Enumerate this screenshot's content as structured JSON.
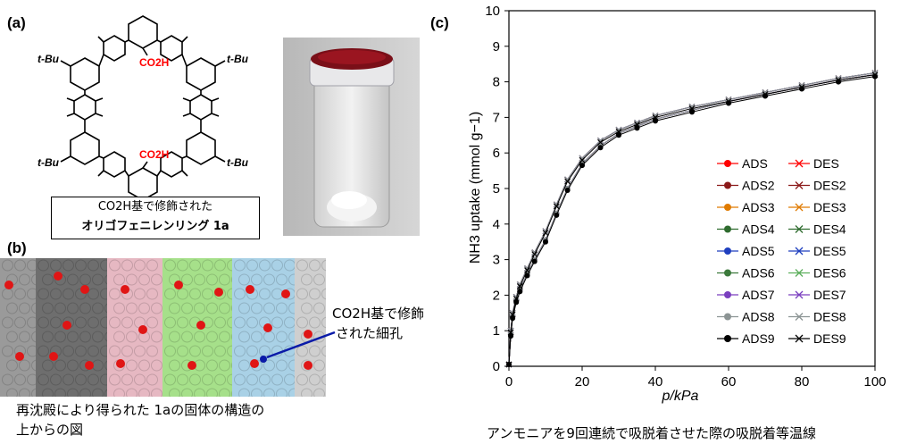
{
  "panel_a": {
    "label": "(a)",
    "substituent_tbu": "t-Bu",
    "co2h": "CO2H",
    "box_line1": "CO2H基で修飾された",
    "box_line2": "オリゴフェニレンリング 1a"
  },
  "panel_b": {
    "label": "(b)",
    "annotation_line1": "CO2H基で修飾",
    "annotation_line2": "された細孔",
    "caption_line1": "再沈殿により得られた 1aの固体の構造の",
    "caption_line2": "上からの図"
  },
  "panel_c": {
    "label": "(c)",
    "caption": "アンモニアを9回連続で吸脱着させた際の吸脱着等温線"
  },
  "chart_data": {
    "type": "line",
    "xlabel": "p/kPa",
    "ylabel": "NH3 uptake (mmol g−1)",
    "xlim": [
      0,
      100
    ],
    "ylim": [
      0,
      10
    ],
    "xticks": [
      0,
      20,
      40,
      60,
      80,
      100
    ],
    "yticks": [
      0,
      1,
      2,
      3,
      4,
      5,
      6,
      7,
      8,
      9,
      10
    ],
    "grid": false,
    "legend_position": "right",
    "x": [
      0,
      0.5,
      1,
      2,
      3,
      5,
      7,
      10,
      13,
      16,
      20,
      25,
      30,
      35,
      40,
      50,
      60,
      70,
      80,
      90,
      100
    ],
    "series": [
      {
        "name": "ADS",
        "color": "#ff0000",
        "marker": "circle",
        "values": [
          0.05,
          0.9,
          1.4,
          1.85,
          2.15,
          2.6,
          3.0,
          3.55,
          4.3,
          5.0,
          5.7,
          6.2,
          6.55,
          6.75,
          6.95,
          7.2,
          7.45,
          7.65,
          7.85,
          8.05,
          8.2
        ]
      },
      {
        "name": "DES",
        "color": "#ff0000",
        "marker": "x",
        "values": [
          0.05,
          1.0,
          1.5,
          1.95,
          2.3,
          2.75,
          3.2,
          3.8,
          4.55,
          5.25,
          5.85,
          6.35,
          6.65,
          6.85,
          7.05,
          7.3,
          7.5,
          7.7,
          7.9,
          8.1,
          8.25
        ]
      },
      {
        "name": "ADS2",
        "color": "#8b1a1a",
        "marker": "circle",
        "values": [
          0.05,
          0.9,
          1.4,
          1.85,
          2.15,
          2.6,
          3.0,
          3.55,
          4.3,
          5.0,
          5.7,
          6.2,
          6.55,
          6.75,
          6.95,
          7.2,
          7.45,
          7.65,
          7.85,
          8.05,
          8.2
        ]
      },
      {
        "name": "DES2",
        "color": "#8b1a1a",
        "marker": "x",
        "values": [
          0.05,
          1.0,
          1.5,
          1.95,
          2.3,
          2.75,
          3.2,
          3.8,
          4.55,
          5.25,
          5.85,
          6.35,
          6.65,
          6.85,
          7.05,
          7.3,
          7.5,
          7.7,
          7.9,
          8.1,
          8.25
        ]
      },
      {
        "name": "ADS3",
        "color": "#e07b00",
        "marker": "circle",
        "values": [
          0.05,
          0.9,
          1.4,
          1.85,
          2.15,
          2.6,
          3.0,
          3.55,
          4.3,
          5.0,
          5.7,
          6.2,
          6.55,
          6.75,
          6.95,
          7.2,
          7.45,
          7.65,
          7.85,
          8.05,
          8.2
        ]
      },
      {
        "name": "DES3",
        "color": "#e07b00",
        "marker": "x",
        "values": [
          0.05,
          1.0,
          1.5,
          1.95,
          2.3,
          2.75,
          3.2,
          3.8,
          4.55,
          5.25,
          5.85,
          6.35,
          6.65,
          6.85,
          7.05,
          7.3,
          7.5,
          7.7,
          7.9,
          8.1,
          8.25
        ]
      },
      {
        "name": "ADS4",
        "color": "#2e6b2e",
        "marker": "circle",
        "values": [
          0.05,
          0.9,
          1.4,
          1.85,
          2.15,
          2.6,
          3.0,
          3.55,
          4.3,
          5.0,
          5.7,
          6.2,
          6.55,
          6.75,
          6.95,
          7.2,
          7.45,
          7.65,
          7.85,
          8.05,
          8.2
        ]
      },
      {
        "name": "DES4",
        "color": "#2e6b2e",
        "marker": "x",
        "values": [
          0.05,
          1.0,
          1.5,
          1.95,
          2.3,
          2.75,
          3.2,
          3.8,
          4.55,
          5.25,
          5.85,
          6.35,
          6.65,
          6.85,
          7.05,
          7.3,
          7.5,
          7.7,
          7.9,
          8.1,
          8.25
        ]
      },
      {
        "name": "ADS5",
        "color": "#1f3fbf",
        "marker": "circle",
        "values": [
          0.05,
          0.9,
          1.4,
          1.85,
          2.15,
          2.6,
          3.0,
          3.55,
          4.3,
          5.0,
          5.7,
          6.2,
          6.55,
          6.75,
          6.95,
          7.2,
          7.45,
          7.65,
          7.85,
          8.05,
          8.2
        ]
      },
      {
        "name": "DES5",
        "color": "#1f3fbf",
        "marker": "x",
        "values": [
          0.05,
          1.0,
          1.5,
          1.95,
          2.3,
          2.75,
          3.2,
          3.8,
          4.55,
          5.25,
          5.85,
          6.35,
          6.65,
          6.85,
          7.05,
          7.3,
          7.5,
          7.7,
          7.9,
          8.1,
          8.25
        ]
      },
      {
        "name": "ADS6",
        "color": "#3b7a3b",
        "marker": "circle",
        "values": [
          0.05,
          0.9,
          1.4,
          1.85,
          2.15,
          2.6,
          3.0,
          3.55,
          4.3,
          5.0,
          5.7,
          6.2,
          6.55,
          6.75,
          6.95,
          7.2,
          7.45,
          7.65,
          7.85,
          8.05,
          8.2
        ]
      },
      {
        "name": "DES6",
        "color": "#5cae5c",
        "marker": "x",
        "values": [
          0.05,
          1.0,
          1.5,
          1.95,
          2.3,
          2.75,
          3.2,
          3.8,
          4.55,
          5.25,
          5.85,
          6.35,
          6.65,
          6.85,
          7.05,
          7.3,
          7.5,
          7.7,
          7.9,
          8.1,
          8.25
        ]
      },
      {
        "name": "ADS7",
        "color": "#7a3fbf",
        "marker": "circle",
        "values": [
          0.05,
          0.9,
          1.4,
          1.85,
          2.15,
          2.6,
          3.0,
          3.55,
          4.3,
          5.0,
          5.7,
          6.2,
          6.55,
          6.75,
          6.95,
          7.2,
          7.45,
          7.65,
          7.85,
          8.05,
          8.2
        ]
      },
      {
        "name": "DES7",
        "color": "#7a3fbf",
        "marker": "x",
        "values": [
          0.05,
          1.0,
          1.5,
          1.95,
          2.3,
          2.75,
          3.2,
          3.8,
          4.55,
          5.25,
          5.85,
          6.35,
          6.65,
          6.85,
          7.05,
          7.3,
          7.5,
          7.7,
          7.9,
          8.1,
          8.25
        ]
      },
      {
        "name": "ADS8",
        "color": "#8c9494",
        "marker": "circle",
        "values": [
          0.05,
          0.9,
          1.4,
          1.85,
          2.15,
          2.6,
          3.0,
          3.55,
          4.3,
          5.0,
          5.7,
          6.2,
          6.55,
          6.75,
          6.95,
          7.2,
          7.45,
          7.65,
          7.85,
          8.05,
          8.2
        ]
      },
      {
        "name": "DES8",
        "color": "#8c9494",
        "marker": "x",
        "values": [
          0.05,
          1.0,
          1.5,
          1.95,
          2.3,
          2.75,
          3.2,
          3.8,
          4.55,
          5.25,
          5.85,
          6.35,
          6.65,
          6.85,
          7.05,
          7.3,
          7.5,
          7.7,
          7.9,
          8.1,
          8.25
        ]
      },
      {
        "name": "ADS9",
        "color": "#000000",
        "marker": "circle",
        "values": [
          0.05,
          0.85,
          1.35,
          1.8,
          2.1,
          2.55,
          2.95,
          3.5,
          4.25,
          4.95,
          5.65,
          6.15,
          6.5,
          6.7,
          6.9,
          7.15,
          7.4,
          7.6,
          7.8,
          8.0,
          8.15
        ]
      },
      {
        "name": "DES9",
        "color": "#000000",
        "marker": "x",
        "values": [
          0.05,
          0.95,
          1.45,
          1.9,
          2.25,
          2.7,
          3.15,
          3.75,
          4.5,
          5.2,
          5.8,
          6.3,
          6.6,
          6.8,
          7.0,
          7.25,
          7.45,
          7.65,
          7.85,
          8.05,
          8.2
        ]
      }
    ]
  }
}
